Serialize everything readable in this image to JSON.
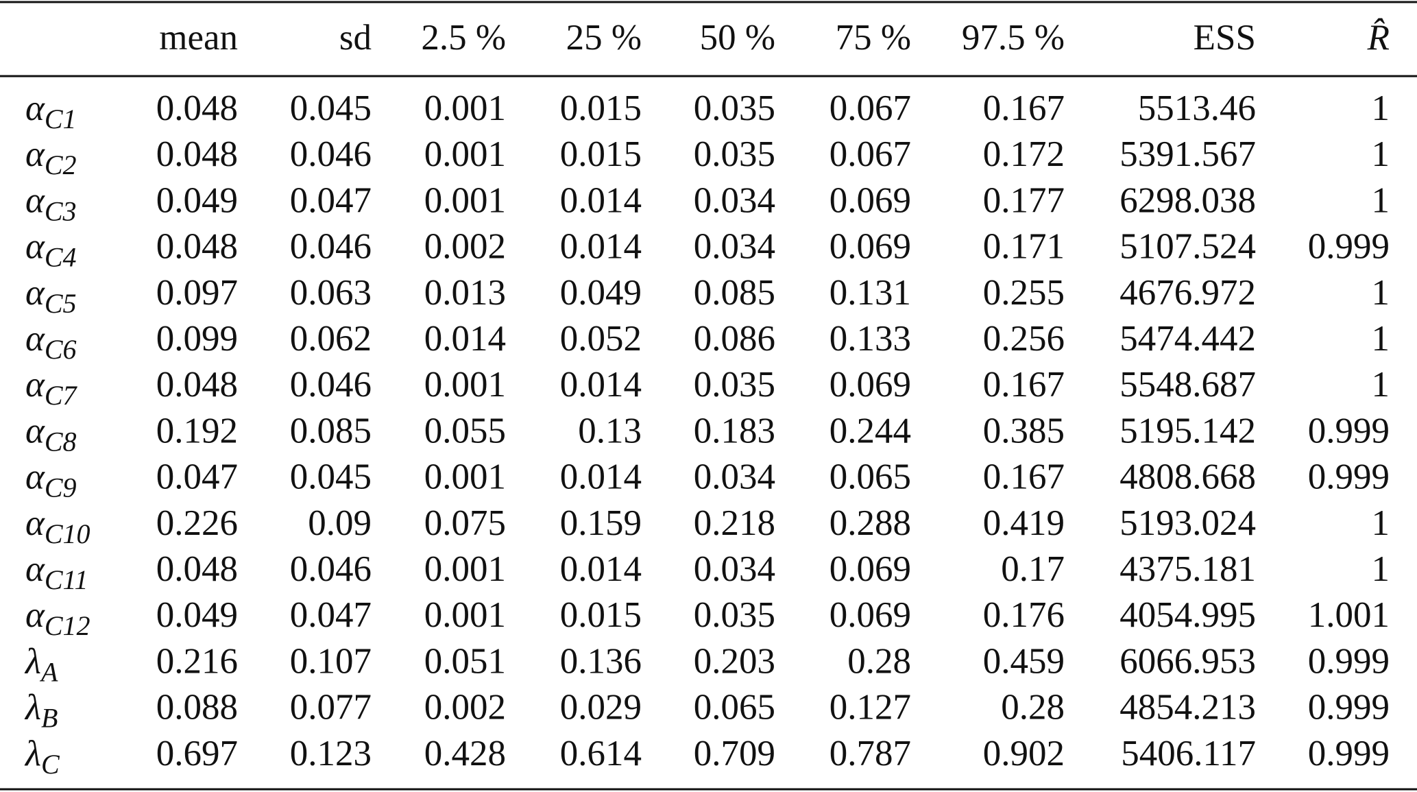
{
  "table": {
    "header": [
      "",
      "mean",
      "sd",
      "2.5 %",
      "25 %",
      "50 %",
      "75 %",
      "97.5 %",
      "ESS",
      "R̂"
    ],
    "rows": [
      {
        "symbol": "α",
        "sub": "C1",
        "values": [
          0.048,
          0.045,
          0.001,
          0.015,
          0.035,
          0.067,
          0.167,
          5513.46,
          1
        ]
      },
      {
        "symbol": "α",
        "sub": "C2",
        "values": [
          0.048,
          0.046,
          0.001,
          0.015,
          0.035,
          0.067,
          0.172,
          5391.567,
          1
        ]
      },
      {
        "symbol": "α",
        "sub": "C3",
        "values": [
          0.049,
          0.047,
          0.001,
          0.014,
          0.034,
          0.069,
          0.177,
          6298.038,
          1
        ]
      },
      {
        "symbol": "α",
        "sub": "C4",
        "values": [
          0.048,
          0.046,
          0.002,
          0.014,
          0.034,
          0.069,
          0.171,
          5107.524,
          0.999
        ]
      },
      {
        "symbol": "α",
        "sub": "C5",
        "values": [
          0.097,
          0.063,
          0.013,
          0.049,
          0.085,
          0.131,
          0.255,
          4676.972,
          1
        ]
      },
      {
        "symbol": "α",
        "sub": "C6",
        "values": [
          0.099,
          0.062,
          0.014,
          0.052,
          0.086,
          0.133,
          0.256,
          5474.442,
          1
        ]
      },
      {
        "symbol": "α",
        "sub": "C7",
        "values": [
          0.048,
          0.046,
          0.001,
          0.014,
          0.035,
          0.069,
          0.167,
          5548.687,
          1
        ]
      },
      {
        "symbol": "α",
        "sub": "C8",
        "values": [
          0.192,
          0.085,
          0.055,
          0.13,
          0.183,
          0.244,
          0.385,
          5195.142,
          0.999
        ]
      },
      {
        "symbol": "α",
        "sub": "C9",
        "values": [
          0.047,
          0.045,
          0.001,
          0.014,
          0.034,
          0.065,
          0.167,
          4808.668,
          0.999
        ]
      },
      {
        "symbol": "α",
        "sub": "C10",
        "values": [
          0.226,
          0.09,
          0.075,
          0.159,
          0.218,
          0.288,
          0.419,
          5193.024,
          1
        ]
      },
      {
        "symbol": "α",
        "sub": "C11",
        "values": [
          0.048,
          0.046,
          0.001,
          0.014,
          0.034,
          0.069,
          0.17,
          4375.181,
          1
        ]
      },
      {
        "symbol": "α",
        "sub": "C12",
        "values": [
          0.049,
          0.047,
          0.001,
          0.015,
          0.035,
          0.069,
          0.176,
          4054.995,
          1.001
        ]
      },
      {
        "symbol": "λ",
        "sub": "A",
        "values": [
          0.216,
          0.107,
          0.051,
          0.136,
          0.203,
          0.28,
          0.459,
          6066.953,
          0.999
        ]
      },
      {
        "symbol": "λ",
        "sub": "B",
        "values": [
          0.088,
          0.077,
          0.002,
          0.029,
          0.065,
          0.127,
          0.28,
          4854.213,
          0.999
        ]
      },
      {
        "symbol": "λ",
        "sub": "C",
        "values": [
          0.697,
          0.123,
          0.428,
          0.614,
          0.709,
          0.787,
          0.902,
          5406.117,
          0.999
        ]
      }
    ]
  }
}
